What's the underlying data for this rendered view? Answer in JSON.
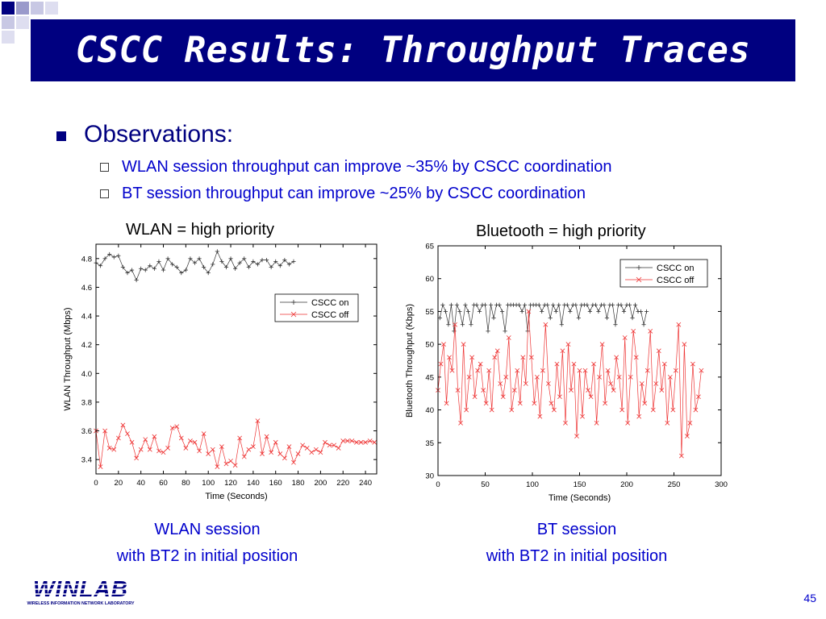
{
  "slide": {
    "title": "CSCC Results: Throughput Traces",
    "bullet": "Observations:",
    "subbullets": [
      "WLAN session throughput can improve ~35% by CSCC coordination",
      "BT session throughput can improve ~25% by CSCC coordination"
    ],
    "left_label": "WLAN = high priority",
    "right_label": "Bluetooth = high priority",
    "left_caption_1": "WLAN session",
    "left_caption_2": "with BT2 in initial position",
    "right_caption_1": "BT session",
    "right_caption_2": "with BT2 in initial position",
    "page_number": "45",
    "logo_text": "WINLAB",
    "logo_subtext": "WIRELESS INFORMATION NETWORK LABORATORY"
  },
  "colors": {
    "title_bg": "#000080",
    "text_blue": "#0000cc",
    "cscc_on": "#333333",
    "cscc_off": "#ee3333"
  },
  "chart_data": [
    {
      "type": "line",
      "xlabel": "Time (Seconds)",
      "ylabel": "WLAN Throughput (Mbps)",
      "xlim": [
        0,
        250
      ],
      "ylim": [
        3.3,
        4.9
      ],
      "xticks": [
        0,
        20,
        40,
        60,
        80,
        100,
        120,
        140,
        160,
        180,
        200,
        220,
        240
      ],
      "yticks": [
        3.4,
        3.6,
        3.8,
        4.0,
        4.2,
        4.4,
        4.6,
        4.8
      ],
      "legend_position": "upper-right",
      "series": [
        {
          "name": "CSCC on",
          "marker": "+",
          "x": [
            0,
            4,
            8,
            12,
            16,
            20,
            24,
            28,
            32,
            36,
            40,
            44,
            48,
            52,
            56,
            60,
            64,
            68,
            72,
            76,
            80,
            84,
            88,
            92,
            96,
            100,
            104,
            108,
            112,
            116,
            120,
            124,
            128,
            132,
            136,
            140,
            144,
            148,
            152,
            156,
            160,
            164,
            168,
            172,
            176
          ],
          "y": [
            4.77,
            4.75,
            4.8,
            4.83,
            4.81,
            4.82,
            4.74,
            4.7,
            4.72,
            4.65,
            4.73,
            4.72,
            4.75,
            4.73,
            4.78,
            4.72,
            4.8,
            4.76,
            4.74,
            4.7,
            4.72,
            4.8,
            4.77,
            4.8,
            4.74,
            4.7,
            4.76,
            4.85,
            4.78,
            4.74,
            4.8,
            4.73,
            4.77,
            4.8,
            4.74,
            4.78,
            4.76,
            4.79,
            4.79,
            4.74,
            4.78,
            4.75,
            4.79,
            4.76,
            4.78
          ]
        },
        {
          "name": "CSCC off",
          "marker": "x",
          "x": [
            0,
            4,
            8,
            12,
            16,
            20,
            24,
            28,
            32,
            36,
            40,
            44,
            48,
            52,
            56,
            60,
            64,
            68,
            72,
            76,
            80,
            84,
            88,
            92,
            96,
            100,
            104,
            108,
            112,
            116,
            120,
            124,
            128,
            132,
            136,
            140,
            144,
            148,
            152,
            156,
            160,
            164,
            168,
            172,
            176,
            180,
            184,
            188,
            192,
            196,
            200,
            204,
            208,
            212,
            216,
            220,
            224,
            228,
            232,
            236,
            240,
            244,
            248
          ],
          "y": [
            3.6,
            3.35,
            3.6,
            3.48,
            3.47,
            3.55,
            3.64,
            3.58,
            3.52,
            3.41,
            3.47,
            3.54,
            3.47,
            3.56,
            3.46,
            3.45,
            3.48,
            3.62,
            3.63,
            3.55,
            3.48,
            3.53,
            3.52,
            3.46,
            3.58,
            3.44,
            3.47,
            3.35,
            3.49,
            3.37,
            3.39,
            3.36,
            3.55,
            3.42,
            3.47,
            3.49,
            3.67,
            3.44,
            3.56,
            3.45,
            3.52,
            3.44,
            3.41,
            3.49,
            3.38,
            3.44,
            3.5,
            3.48,
            3.45,
            3.47,
            3.45,
            3.52,
            3.5,
            3.5,
            3.48,
            3.53,
            3.53,
            3.53,
            3.52,
            3.52,
            3.52,
            3.53,
            3.52
          ]
        }
      ]
    },
    {
      "type": "line",
      "xlabel": "Time (Seconds)",
      "ylabel": "Bluetooth Throughput (Kbps)",
      "xlim": [
        0,
        300
      ],
      "ylim": [
        30,
        65
      ],
      "xticks": [
        0,
        50,
        100,
        150,
        200,
        250,
        300
      ],
      "yticks": [
        30,
        35,
        40,
        45,
        50,
        55,
        60,
        65
      ],
      "legend_position": "upper-right",
      "series": [
        {
          "name": "CSCC on",
          "marker": "+",
          "x": [
            2,
            5,
            8,
            11,
            14,
            17,
            20,
            23,
            26,
            29,
            32,
            35,
            38,
            41,
            44,
            47,
            50,
            53,
            56,
            59,
            62,
            65,
            68,
            71,
            74,
            77,
            80,
            83,
            86,
            89,
            92,
            95,
            98,
            101,
            104,
            107,
            110,
            113,
            116,
            119,
            122,
            125,
            128,
            131,
            134,
            137,
            140,
            143,
            146,
            149,
            152,
            155,
            158,
            161,
            164,
            167,
            170,
            173,
            176,
            179,
            182,
            185,
            188,
            191,
            194,
            197,
            200,
            203,
            206,
            209,
            212,
            215,
            218,
            221
          ],
          "y": [
            54,
            56,
            55,
            53,
            56,
            52,
            56,
            55,
            53,
            56,
            55,
            53,
            56,
            56,
            55,
            56,
            56,
            52,
            56,
            54,
            56,
            56,
            55,
            52,
            56,
            56,
            56,
            56,
            56,
            55,
            56,
            52,
            56,
            56,
            56,
            56,
            55,
            56,
            56,
            54,
            56,
            55,
            56,
            53,
            56,
            56,
            55,
            56,
            56,
            54,
            56,
            56,
            56,
            55,
            56,
            56,
            55,
            56,
            56,
            54,
            56,
            56,
            53,
            56,
            56,
            55,
            56,
            56,
            54,
            56,
            55,
            55,
            53,
            55
          ]
        },
        {
          "name": "CSCC off",
          "marker": "x",
          "x": [
            0,
            3,
            6,
            9,
            12,
            15,
            18,
            21,
            24,
            27,
            30,
            33,
            36,
            39,
            42,
            45,
            48,
            51,
            54,
            57,
            60,
            63,
            66,
            69,
            72,
            75,
            78,
            81,
            84,
            87,
            90,
            93,
            96,
            99,
            102,
            105,
            108,
            111,
            114,
            117,
            120,
            123,
            126,
            129,
            132,
            135,
            138,
            141,
            144,
            147,
            150,
            153,
            156,
            159,
            162,
            165,
            168,
            171,
            174,
            177,
            180,
            183,
            186,
            189,
            192,
            195,
            198,
            201,
            204,
            207,
            210,
            213,
            216,
            219,
            222,
            225,
            228,
            231,
            234,
            237,
            240,
            243,
            246,
            249,
            252,
            255,
            258,
            261,
            264,
            267,
            270,
            273,
            276,
            279
          ],
          "y": [
            43,
            47,
            50,
            41,
            48,
            46,
            53,
            43,
            38,
            50,
            40,
            45,
            48,
            42,
            46,
            47,
            43,
            41,
            46,
            40,
            48,
            49,
            44,
            42,
            45,
            51,
            40,
            43,
            46,
            41,
            48,
            44,
            55,
            48,
            41,
            45,
            39,
            46,
            53,
            44,
            41,
            40,
            47,
            42,
            49,
            38,
            50,
            43,
            47,
            36,
            46,
            39,
            46,
            43,
            42,
            47,
            38,
            45,
            50,
            41,
            46,
            44,
            43,
            48,
            45,
            40,
            51,
            38,
            45,
            52,
            48,
            39,
            44,
            41,
            46,
            52,
            40,
            44,
            49,
            43,
            47,
            38,
            45,
            40,
            46,
            53,
            33,
            50,
            36,
            38,
            47,
            40,
            42,
            46
          ]
        }
      ]
    }
  ]
}
